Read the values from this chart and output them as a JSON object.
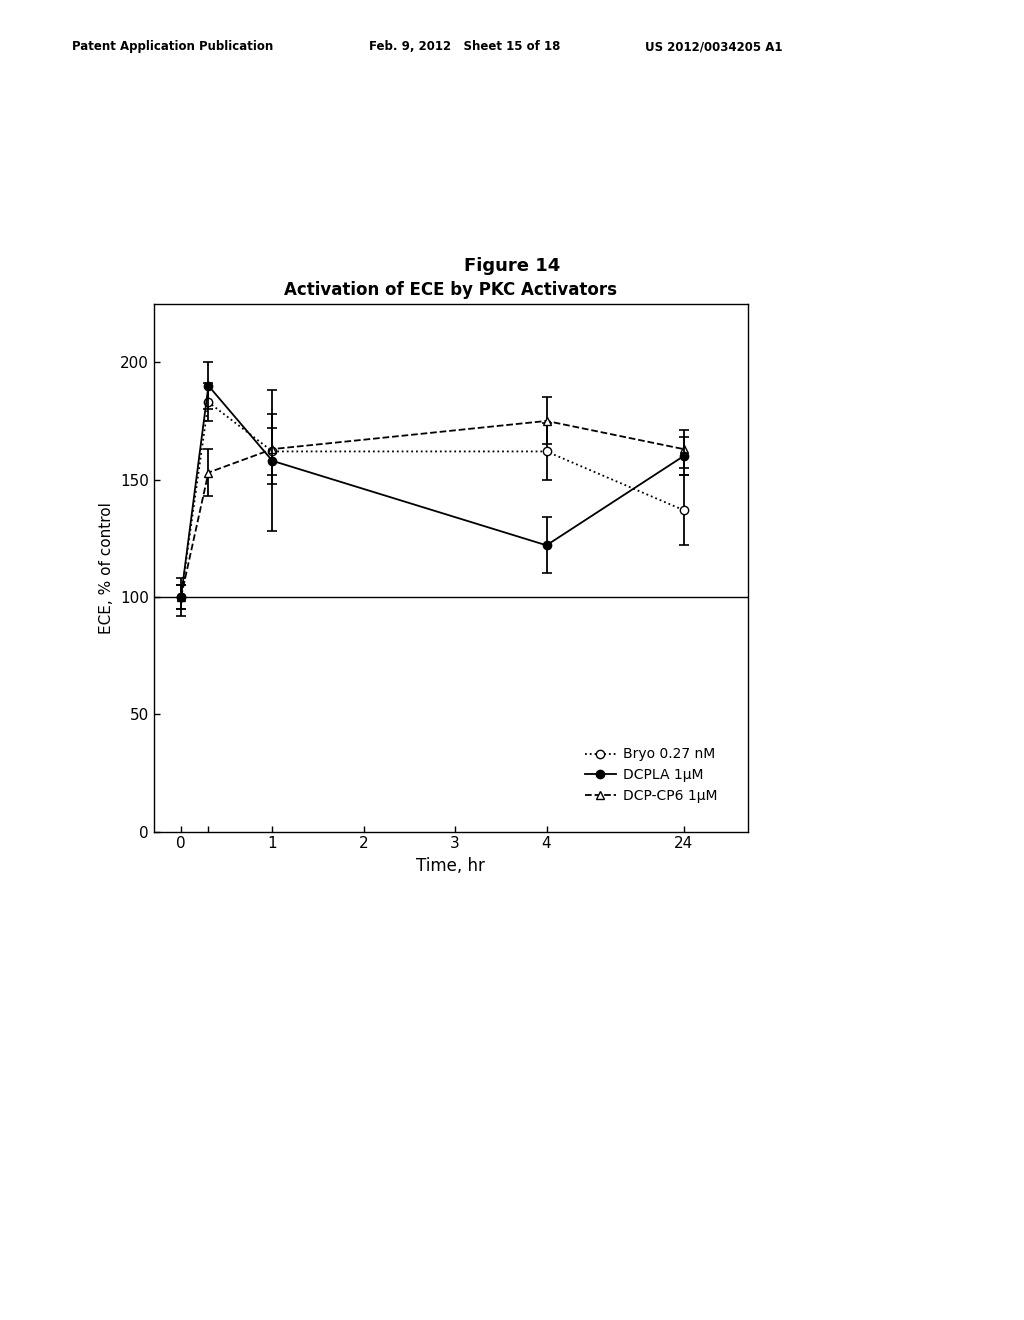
{
  "title": "Activation of ECE by PKC Activators",
  "xlabel": "Time, hr",
  "ylabel": "ECE, % of control",
  "figure_title": "Figure 14",
  "patent_left": "Patent Application Publication",
  "patent_mid": "Feb. 9, 2012   Sheet 15 of 18",
  "patent_right": "US 2012/0034205 A1",
  "bryo_x": [
    0,
    0.3,
    1,
    4,
    24
  ],
  "bryo_y": [
    100,
    183,
    162,
    162,
    137
  ],
  "bryo_yerr": [
    5,
    8,
    10,
    12,
    15
  ],
  "dcpla_x": [
    0,
    0.3,
    1,
    4,
    24
  ],
  "dcpla_y": [
    100,
    190,
    158,
    122,
    160
  ],
  "dcpla_yerr": [
    5,
    10,
    30,
    12,
    8
  ],
  "dcp_x": [
    0,
    0.3,
    1,
    4,
    24
  ],
  "dcp_y": [
    100,
    153,
    163,
    175,
    163
  ],
  "dcp_yerr": [
    8,
    10,
    15,
    10,
    8
  ],
  "hline_y": 100,
  "ylim": [
    0,
    225
  ],
  "yticks": [
    0,
    50,
    100,
    150,
    200
  ],
  "bg_color": "#ffffff",
  "line_color": "#000000",
  "x_positions": [
    0,
    0.3,
    1,
    2,
    3,
    4,
    5.5
  ],
  "x_labels": [
    "0",
    "",
    "1",
    "2",
    "3",
    "4",
    "24"
  ],
  "x_data_map": {
    "0": 0,
    "0.3": 0.3,
    "1": 1,
    "4": 4,
    "24": 5.5
  },
  "xlim": [
    -0.3,
    6.2
  ]
}
